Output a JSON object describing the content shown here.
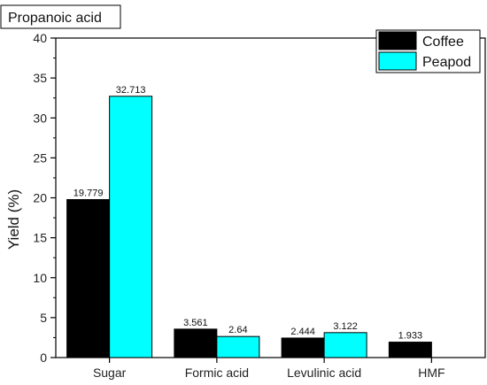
{
  "chart_data": {
    "type": "bar",
    "title": "Propanoic acid",
    "xlabel": "",
    "ylabel": "Yield (%)",
    "categories": [
      "Sugar",
      "Formic acid",
      "Levulinic acid",
      "HMF"
    ],
    "series": [
      {
        "name": "Coffee",
        "color": "#000000",
        "values": [
          19.779,
          3.561,
          2.444,
          1.933
        ],
        "labels": [
          "19.779",
          "3.561",
          "2.444",
          "1.933"
        ]
      },
      {
        "name": "Peapod",
        "color": "#00FFFF",
        "values": [
          32.713,
          2.64,
          3.122,
          null
        ],
        "labels": [
          "32.713",
          "2.64",
          "3.122",
          ""
        ]
      }
    ],
    "ylim": [
      0,
      40
    ],
    "yticks": [
      "0",
      "5",
      "10",
      "15",
      "20",
      "25",
      "30",
      "35",
      "40"
    ],
    "legend_position": "top-right",
    "grid": false
  }
}
